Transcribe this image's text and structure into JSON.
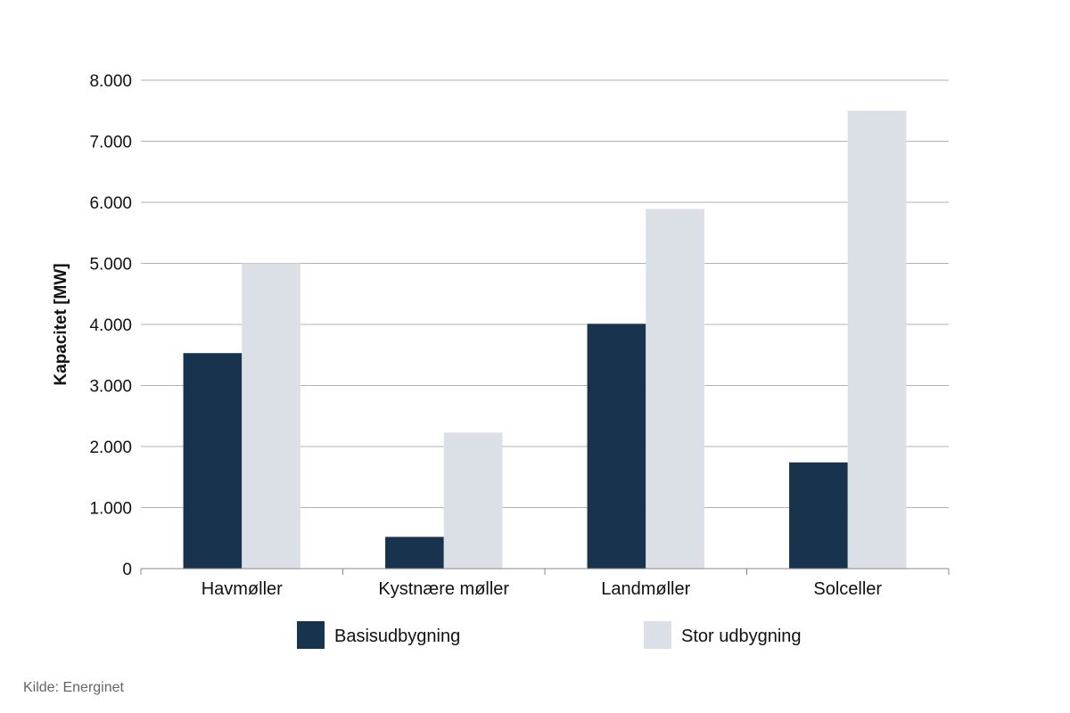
{
  "chart_data": {
    "type": "bar",
    "categories": [
      "Havmøller",
      "Kystnære møller",
      "Landmøller",
      "Solceller"
    ],
    "series": [
      {
        "name": "Basisudbygning",
        "values": [
          3530,
          520,
          4010,
          1740
        ],
        "color": "#17334d"
      },
      {
        "name": "Stor udbygning",
        "values": [
          5000,
          2230,
          5890,
          7500
        ],
        "color": "#dbe0e6"
      }
    ],
    "ylabel": "Kapacitet [MW]",
    "xlabel": "",
    "ylim": [
      0,
      8000
    ],
    "yticks": [
      0,
      1000,
      2000,
      3000,
      4000,
      5000,
      6000,
      7000,
      8000
    ],
    "ytick_labels": [
      "0",
      "1.000",
      "2.000",
      "3.000",
      "4.000",
      "5.000",
      "6.000",
      "7.000",
      "8.000"
    ],
    "grid": true,
    "legend_position": "bottom"
  },
  "source": "Kilde: Energinet"
}
